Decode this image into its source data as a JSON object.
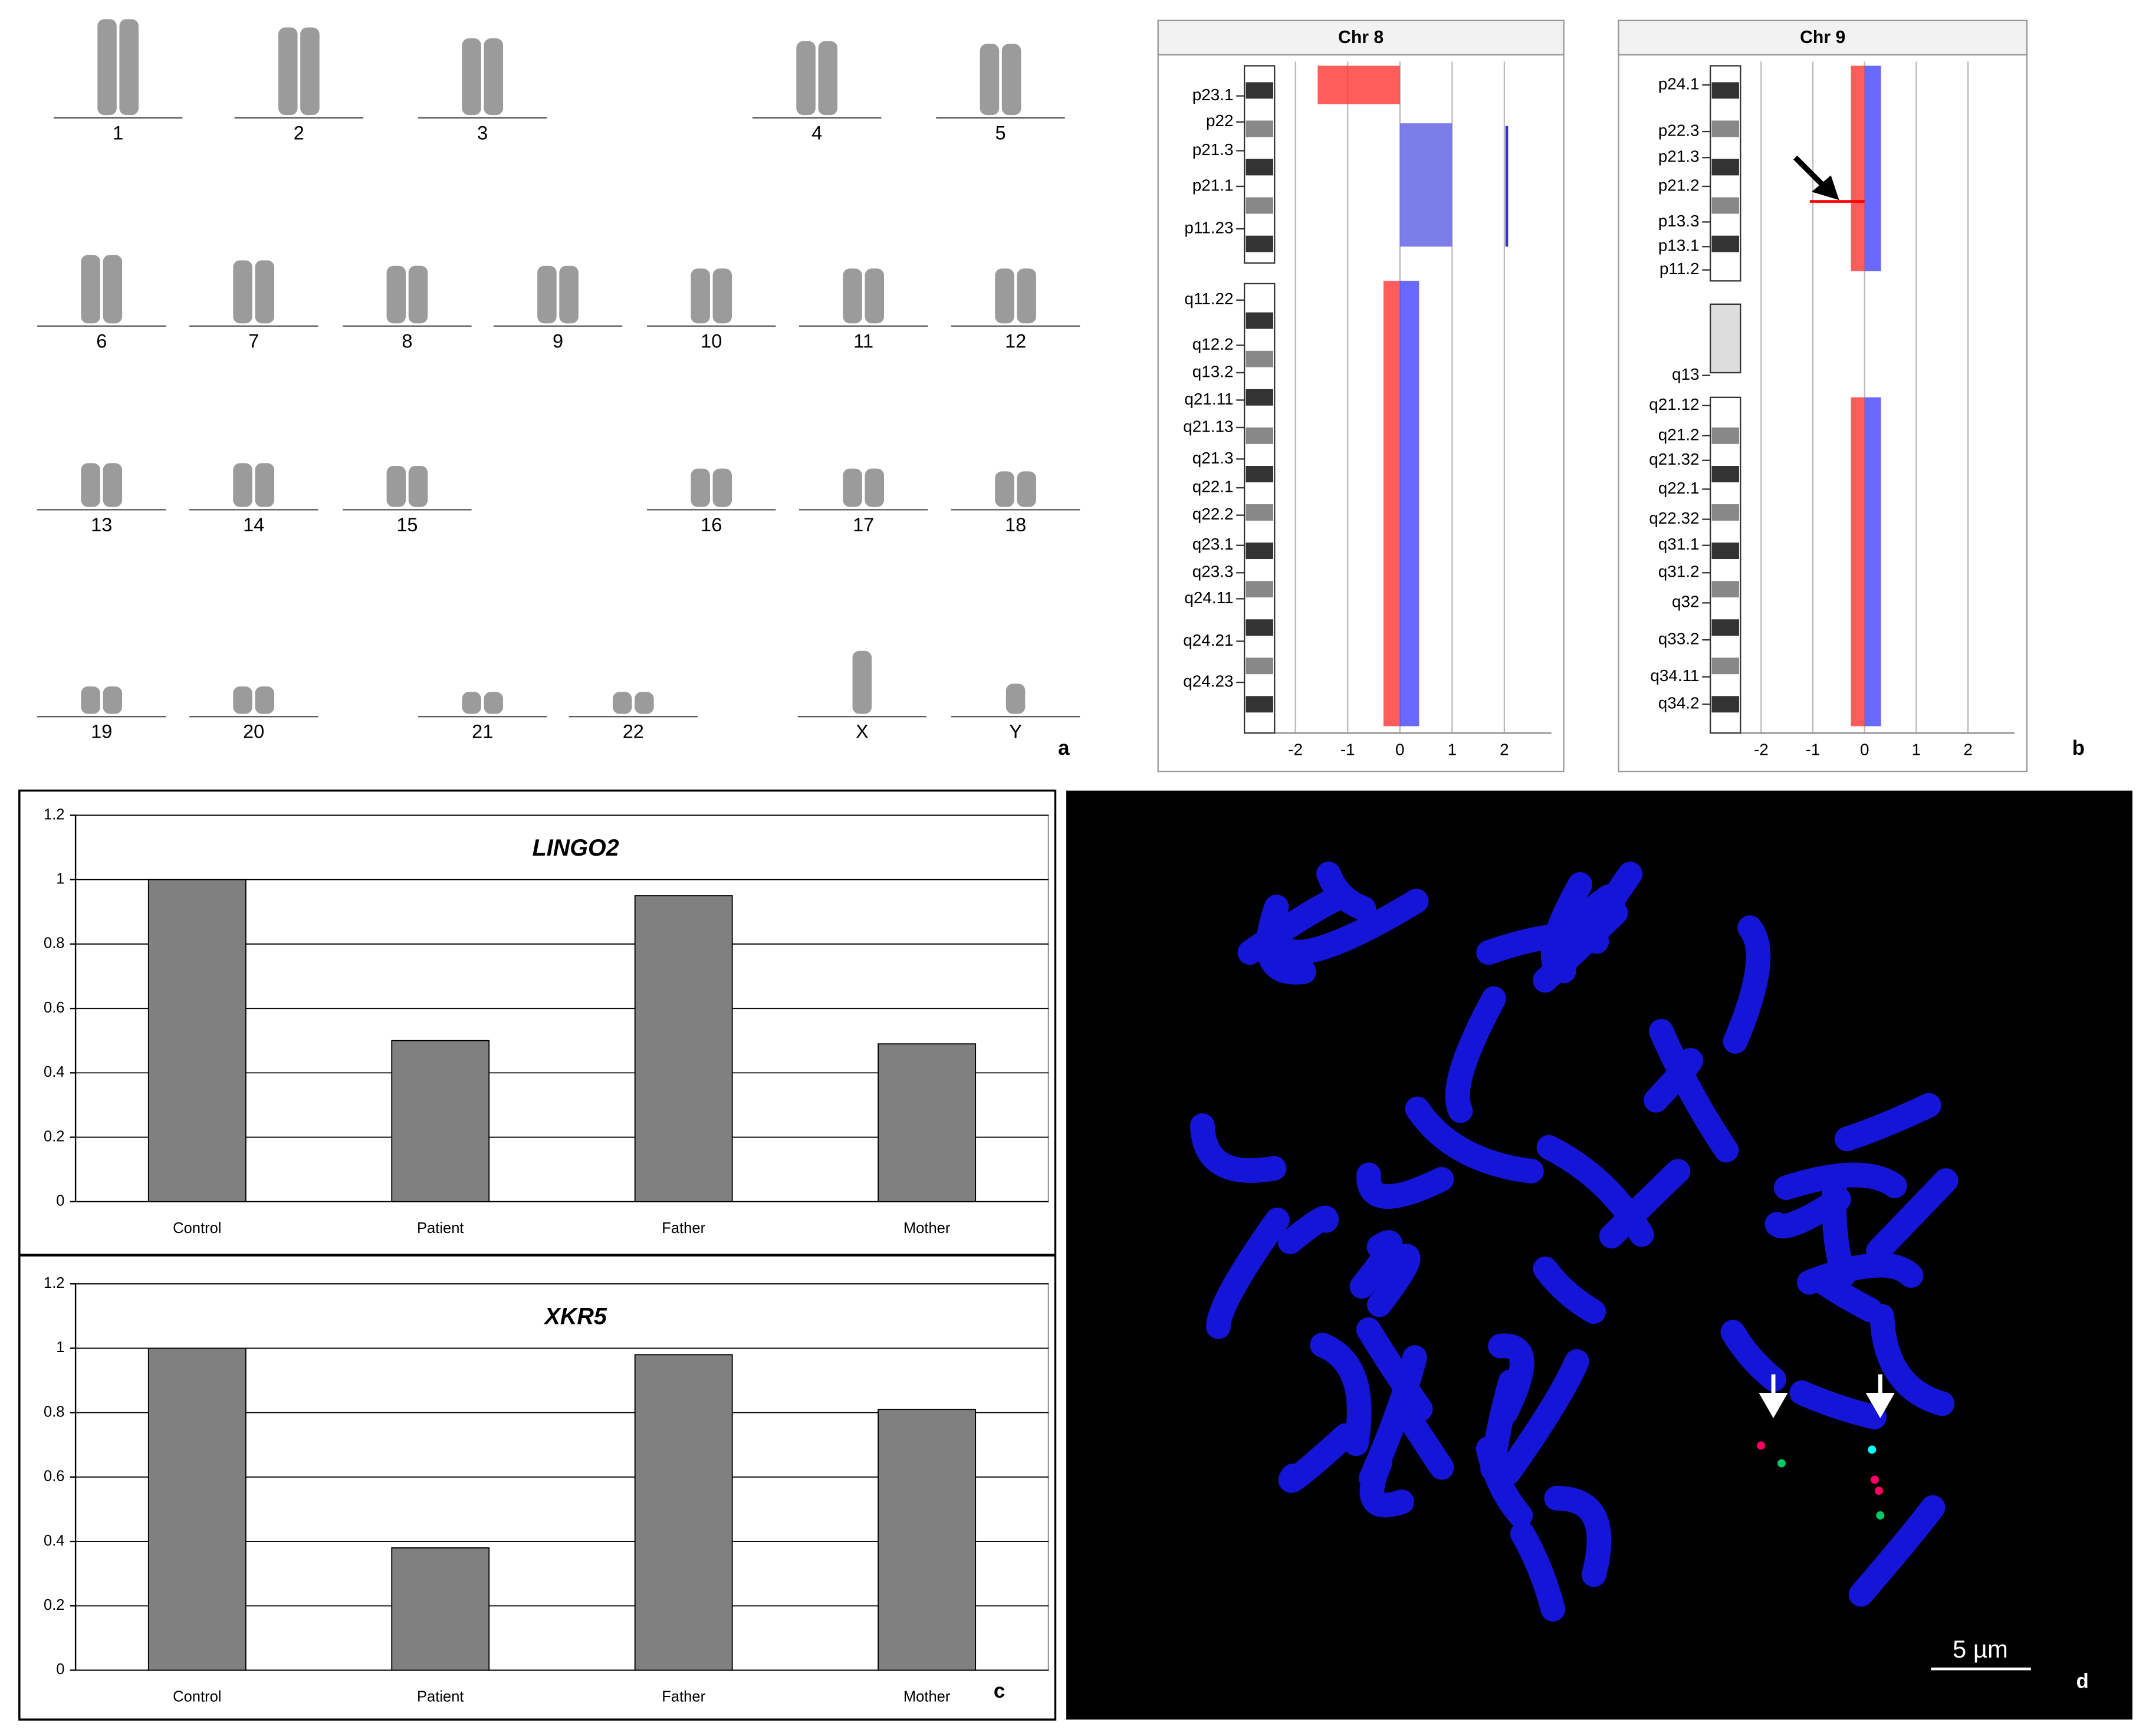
{
  "panel_a": {
    "label": "a",
    "chromosomes": [
      "1",
      "2",
      "3",
      "4",
      "5",
      "6",
      "7",
      "8",
      "9",
      "10",
      "11",
      "12",
      "13",
      "14",
      "15",
      "16",
      "17",
      "18",
      "19",
      "20",
      "21",
      "22",
      "X",
      "Y"
    ]
  },
  "panel_b": {
    "label": "b",
    "plots": [
      {
        "title": "Chr 8",
        "bands": [
          "p23.1",
          "p22",
          "p21.3",
          "p21.1",
          "p11.23",
          "q11.22",
          "q12.2",
          "q13.2",
          "q21.11",
          "q21.13",
          "q21.3",
          "q22.1",
          "q22.2",
          "q23.1",
          "q23.3",
          "q24.11",
          "q24.21",
          "q24.23"
        ],
        "xlim": [
          -2.4,
          2.9
        ],
        "xticks": [
          -2,
          -1,
          0,
          1,
          2
        ]
      },
      {
        "title": "Chr 9",
        "bands": [
          "p24.1",
          "p22.3",
          "p21.3",
          "p21.2",
          "p13.3",
          "p13.1",
          "p11.2",
          "q13",
          "q21.12",
          "q21.2",
          "q21.32",
          "q22.1",
          "q22.32",
          "q31.1",
          "q31.2",
          "q32",
          "q33.2",
          "q34.11",
          "q34.2"
        ],
        "xlim": [
          -2.4,
          2.9
        ],
        "xticks": [
          -2,
          -1,
          0,
          1,
          2
        ]
      }
    ]
  },
  "chart_data": [
    {
      "type": "bar",
      "title": "LINGO2",
      "categories": [
        "Control",
        "Patient",
        "Father",
        "Mother"
      ],
      "values": [
        1,
        0.5,
        0.95,
        0.49
      ],
      "color": "#808080",
      "ylim": [
        0,
        1.2
      ],
      "yticks": [
        0,
        0.2,
        0.4,
        0.6,
        0.8,
        1,
        1.2
      ],
      "grid": true
    },
    {
      "type": "bar",
      "title": "XKR5",
      "categories": [
        "Control",
        "Patient",
        "Father",
        "Mother"
      ],
      "values": [
        1,
        0.38,
        0.98,
        0.81
      ],
      "color": "#808080",
      "ylim": [
        0,
        1.2
      ],
      "yticks": [
        0,
        0.2,
        0.4,
        0.6,
        0.8,
        1,
        1.2
      ],
      "grid": true
    }
  ],
  "panel_c": {
    "label": "c"
  },
  "panel_d": {
    "label": "d",
    "scale_bar": "5 µm"
  }
}
